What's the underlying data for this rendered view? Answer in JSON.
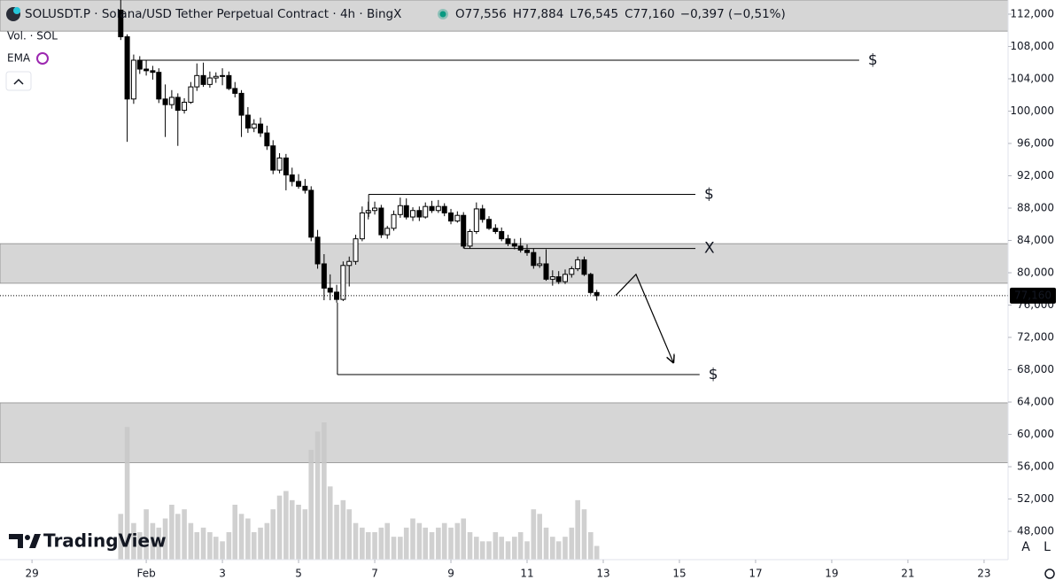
{
  "header": {
    "symbol": "SOLUSDT.P · Solana/USD Tether Perpetual Contract · 4h · BingX",
    "ohlc": [
      {
        "name": "O",
        "value": 77556,
        "label": "77,556"
      },
      {
        "name": "H",
        "value": 77884,
        "label": "77,884"
      },
      {
        "name": "L",
        "value": 76545,
        "label": "76,545"
      },
      {
        "name": "C",
        "value": 77160,
        "label": "77,160"
      }
    ],
    "change": "−0,397 (−0,51%)",
    "volume_legend": "Vol. · SOL",
    "indicator": "EMA",
    "brand": "TradingView",
    "scale_buttons": [
      "A",
      "L"
    ]
  },
  "chart_data": {
    "type": "candlestick",
    "x": [
      2.33,
      2.5,
      2.67,
      2.83,
      3,
      3.17,
      3.33,
      3.5,
      3.67,
      3.83,
      4,
      4.17,
      4.33,
      4.5,
      4.67,
      4.83,
      5,
      5.17,
      5.33,
      5.5,
      5.67,
      5.83,
      6,
      6.17,
      6.33,
      6.5,
      6.67,
      6.83,
      7,
      7.17,
      7.33,
      7.5,
      7.67,
      7.83,
      8,
      8.17,
      8.33,
      8.5,
      8.67,
      8.83,
      9,
      9.17,
      9.33,
      9.5,
      9.67,
      9.83,
      10,
      10.17,
      10.33,
      10.5,
      10.67,
      10.83,
      11,
      11.17,
      11.33,
      11.5,
      11.67,
      11.83,
      12,
      12.17,
      12.33,
      12.5,
      12.67,
      12.83,
      13,
      13.17,
      13.33,
      13.5,
      13.67,
      13.83,
      14,
      14.17,
      14.33,
      14.5,
      14.67,
      14.83
    ],
    "candles": [
      [
        112500,
        113800,
        108800,
        109200
      ],
      [
        109200,
        109500,
        96200,
        101500
      ],
      [
        101500,
        107000,
        100900,
        106300
      ],
      [
        106300,
        106800,
        104600,
        105200
      ],
      [
        105200,
        106300,
        104400,
        105000
      ],
      [
        105000,
        105600,
        103900,
        104800
      ],
      [
        104800,
        105300,
        101000,
        101500
      ],
      [
        101500,
        103300,
        96800,
        100800
      ],
      [
        100800,
        102600,
        100300,
        101700
      ],
      [
        101700,
        102200,
        95700,
        100100
      ],
      [
        100100,
        101600,
        99700,
        101100
      ],
      [
        101100,
        103600,
        100900,
        103000
      ],
      [
        103000,
        105900,
        102500,
        104400
      ],
      [
        104400,
        106000,
        103000,
        103300
      ],
      [
        103300,
        104900,
        102900,
        104100
      ],
      [
        104100,
        104800,
        103500,
        104300
      ],
      [
        104300,
        105300,
        103200,
        104400
      ],
      [
        104400,
        104900,
        102600,
        102800
      ],
      [
        102800,
        103600,
        101700,
        102200
      ],
      [
        102200,
        102600,
        96800,
        99500
      ],
      [
        99500,
        100500,
        97300,
        97900
      ],
      [
        97900,
        99000,
        97400,
        98400
      ],
      [
        98400,
        99200,
        96800,
        97300
      ],
      [
        97300,
        98200,
        95200,
        95700
      ],
      [
        95700,
        96400,
        92200,
        92700
      ],
      [
        92700,
        94800,
        92300,
        94200
      ],
      [
        94200,
        94700,
        90200,
        92100
      ],
      [
        92100,
        93000,
        90700,
        91300
      ],
      [
        91300,
        92200,
        90400,
        90700
      ],
      [
        90700,
        91600,
        89800,
        90200
      ],
      [
        90200,
        90700,
        83900,
        84400
      ],
      [
        84400,
        85300,
        80500,
        81100
      ],
      [
        81100,
        82300,
        76600,
        78100
      ],
      [
        78100,
        79800,
        76600,
        77600
      ],
      [
        77600,
        78500,
        76300,
        76700
      ],
      [
        76700,
        81400,
        76500,
        80900
      ],
      [
        80900,
        82000,
        78300,
        81400
      ],
      [
        81400,
        84700,
        81000,
        84200
      ],
      [
        84200,
        88200,
        83900,
        87400
      ],
      [
        87400,
        88800,
        86600,
        87700
      ],
      [
        87700,
        88800,
        87200,
        88000
      ],
      [
        88000,
        88400,
        84300,
        84700
      ],
      [
        84700,
        85800,
        84200,
        85500
      ],
      [
        85500,
        87700,
        85200,
        87200
      ],
      [
        87200,
        89300,
        86800,
        88300
      ],
      [
        88300,
        89200,
        86600,
        86900
      ],
      [
        86900,
        88100,
        86400,
        87700
      ],
      [
        87700,
        88200,
        86400,
        86900
      ],
      [
        86900,
        88700,
        86700,
        88200
      ],
      [
        88200,
        88900,
        87400,
        87700
      ],
      [
        87700,
        89000,
        87400,
        88200
      ],
      [
        88200,
        88600,
        87000,
        87400
      ],
      [
        87400,
        87900,
        86000,
        86400
      ],
      [
        86400,
        87600,
        86200,
        87100
      ],
      [
        87100,
        87500,
        83000,
        83300
      ],
      [
        83300,
        85400,
        83000,
        85100
      ],
      [
        85100,
        88700,
        84800,
        87900
      ],
      [
        87900,
        88400,
        86200,
        86600
      ],
      [
        86600,
        87000,
        85300,
        85500
      ],
      [
        85500,
        86000,
        84800,
        85100
      ],
      [
        85100,
        85600,
        83900,
        84200
      ],
      [
        84200,
        84700,
        83300,
        83600
      ],
      [
        83600,
        84200,
        82900,
        83300
      ],
      [
        83300,
        84300,
        82500,
        82800
      ],
      [
        82800,
        83500,
        82100,
        82500
      ],
      [
        82500,
        83000,
        80500,
        80900
      ],
      [
        80900,
        82000,
        80600,
        81100
      ],
      [
        81100,
        82900,
        79000,
        79200
      ],
      [
        79200,
        80300,
        78400,
        79500
      ],
      [
        79500,
        80200,
        78600,
        78900
      ],
      [
        78900,
        80400,
        78600,
        79800
      ],
      [
        79800,
        80800,
        79400,
        80500
      ],
      [
        80500,
        82000,
        80200,
        81600
      ],
      [
        81600,
        82000,
        79600,
        79800
      ],
      [
        79800,
        80000,
        77300,
        77556
      ],
      [
        77556,
        77884,
        76545,
        77160
      ]
    ],
    "volume": [
      50,
      145,
      40,
      30,
      55,
      40,
      35,
      45,
      60,
      50,
      55,
      40,
      30,
      35,
      30,
      25,
      20,
      30,
      60,
      50,
      45,
      30,
      35,
      40,
      55,
      70,
      75,
      65,
      60,
      55,
      120,
      140,
      150,
      80,
      60,
      65,
      55,
      40,
      35,
      30,
      30,
      35,
      40,
      25,
      25,
      35,
      45,
      40,
      35,
      30,
      35,
      40,
      35,
      40,
      45,
      30,
      25,
      20,
      20,
      30,
      25,
      20,
      25,
      30,
      20,
      55,
      50,
      35,
      25,
      20,
      25,
      35,
      65,
      55,
      30,
      15
    ],
    "up_color": "#ffffff",
    "down_color": "#000000",
    "volume_color": "#c8c8c8",
    "xlim": [
      -0.84,
      25.63
    ],
    "xticks": [
      {
        "value": 0,
        "label": "29"
      },
      {
        "value": 3,
        "label": "Feb"
      },
      {
        "value": 5,
        "label": "3"
      },
      {
        "value": 7,
        "label": "5"
      },
      {
        "value": 9,
        "label": "7"
      },
      {
        "value": 11,
        "label": "9"
      },
      {
        "value": 13,
        "label": "11"
      },
      {
        "value": 15,
        "label": "13"
      },
      {
        "value": 17,
        "label": "15"
      },
      {
        "value": 19,
        "label": "17"
      },
      {
        "value": 21,
        "label": "19"
      },
      {
        "value": 23,
        "label": "21"
      },
      {
        "value": 25,
        "label": "23"
      }
    ],
    "ylim": [
      44500,
      113750
    ],
    "yticks": [
      {
        "value": 112000,
        "label": "112,000"
      },
      {
        "value": 108000,
        "label": "108,000"
      },
      {
        "value": 104000,
        "label": "104,000"
      },
      {
        "value": 100000,
        "label": "100,000"
      },
      {
        "value": 96000,
        "label": "96,000"
      },
      {
        "value": 92000,
        "label": "92,000"
      },
      {
        "value": 88000,
        "label": "88,000"
      },
      {
        "value": 84000,
        "label": "84,000"
      },
      {
        "value": 80000,
        "label": "80,000"
      },
      {
        "value": 76000,
        "label": "76,000"
      },
      {
        "value": 72000,
        "label": "72,000"
      },
      {
        "value": 68000,
        "label": "68,000"
      },
      {
        "value": 64000,
        "label": "64,000"
      },
      {
        "value": 60000,
        "label": "60,000"
      },
      {
        "value": 56000,
        "label": "56,000"
      },
      {
        "value": 52000,
        "label": "52,000"
      },
      {
        "value": 48000,
        "label": "48,000"
      }
    ],
    "zones": [
      [
        109900,
        113750
      ],
      [
        78700,
        83600
      ],
      [
        56500,
        63900
      ]
    ],
    "zone_color": "#b4b4b4",
    "levels": [
      {
        "price": 106300,
        "anchor": 105400,
        "from": 2.84,
        "to": 21.72,
        "label": "$"
      },
      {
        "price": 89700,
        "anchor": 86900,
        "from": 8.84,
        "to": 17.42,
        "label": "$"
      },
      {
        "price": 83000,
        "anchor": 83600,
        "from": 11.35,
        "to": 17.42,
        "label": "X"
      },
      {
        "price": 67400,
        "anchor": 76300,
        "from": 8.02,
        "to": 17.53,
        "label": "$"
      }
    ],
    "arrow": {
      "x": [
        15.33,
        15.86,
        16.84
      ],
      "y": [
        77200,
        79800,
        68900
      ]
    },
    "last_price": {
      "value": 77160,
      "label": "77,160"
    }
  }
}
